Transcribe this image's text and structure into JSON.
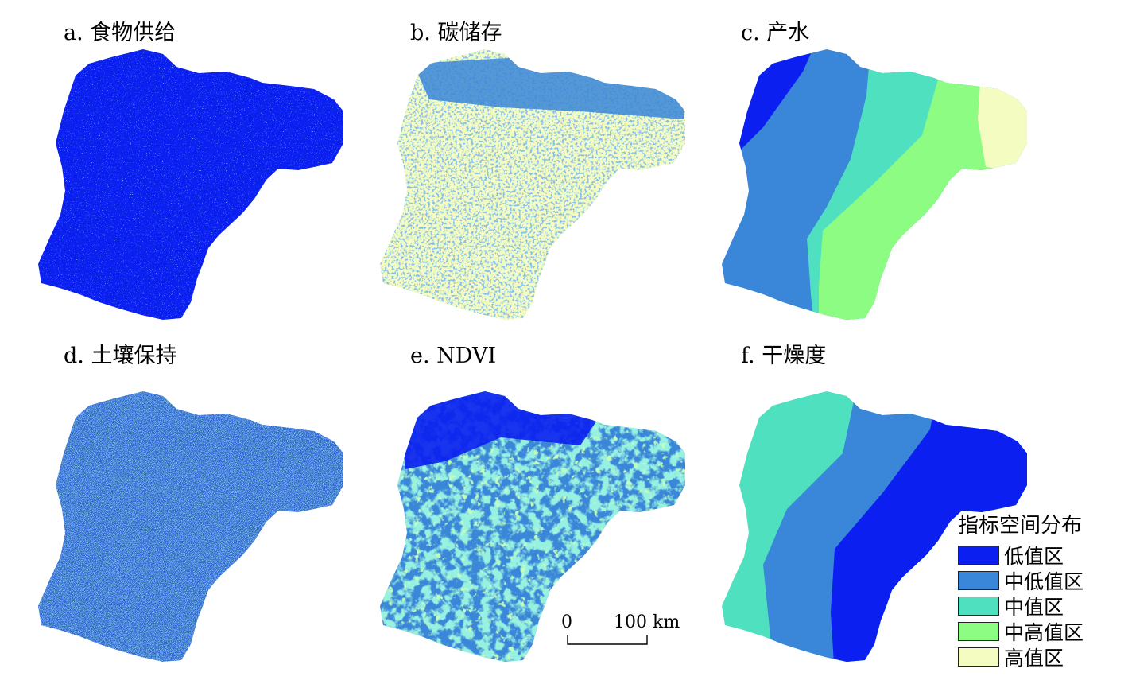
{
  "colors": {
    "low": "#0a1ff0",
    "mid_low": "#3a86d8",
    "mid": "#4fe0c0",
    "mid_high": "#8cfc82",
    "high": "#f5fcc2"
  },
  "panels": [
    {
      "id": "a",
      "title": "a. 食物供给"
    },
    {
      "id": "b",
      "title": "b. 碳储存"
    },
    {
      "id": "c",
      "title": "c. 产水"
    },
    {
      "id": "d",
      "title": "d. 土壤保持"
    },
    {
      "id": "e",
      "title": "e. NDVI"
    },
    {
      "id": "f",
      "title": "f. 干燥度"
    }
  ],
  "legend": {
    "title": "指标空间分布",
    "items": [
      {
        "label": "低值区",
        "color": "#0a1ff0"
      },
      {
        "label": "中低值区",
        "color": "#3a86d8"
      },
      {
        "label": "中值区",
        "color": "#4fe0c0"
      },
      {
        "label": "中高值区",
        "color": "#8cfc82"
      },
      {
        "label": "高值区",
        "color": "#f5fcc2"
      }
    ]
  },
  "scalebar": {
    "start_label": "0",
    "end_label": "100 km"
  }
}
